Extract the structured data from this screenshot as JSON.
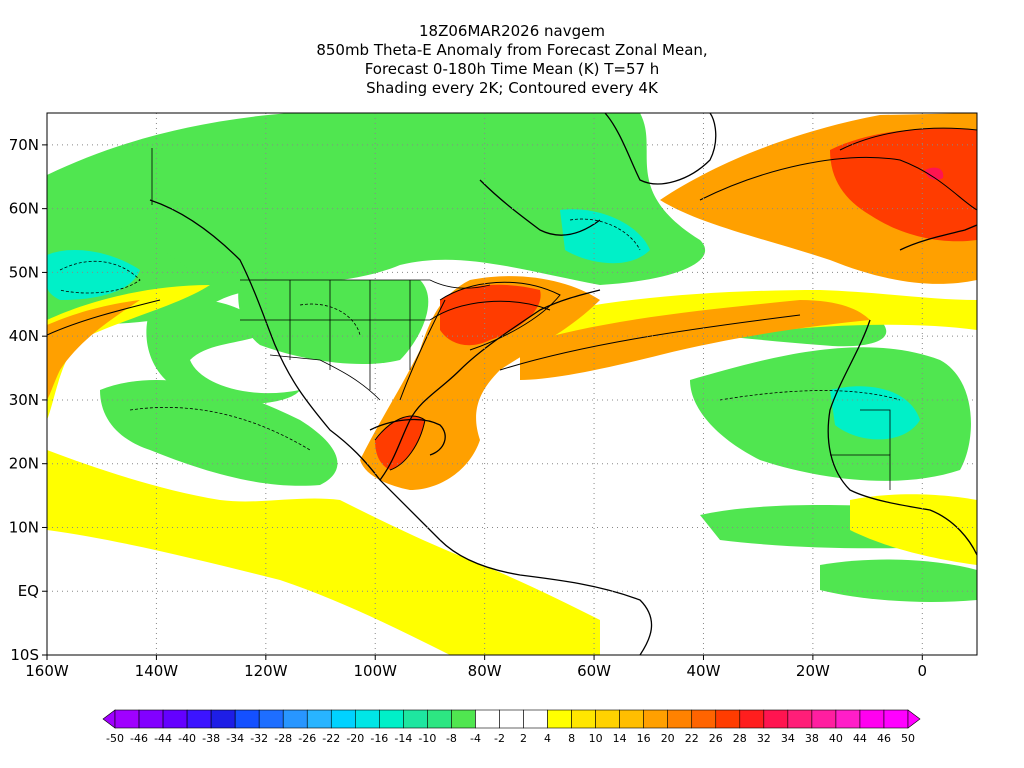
{
  "title": {
    "line1": "18Z06MAR2026 navgem",
    "line2": "850mb Theta-E Anomaly from Forecast Zonal Mean,",
    "line3": "Forecast 0-180h Time Mean (K) T=57 h",
    "line4": "Shading every 2K; Contoured every 4K"
  },
  "map": {
    "lon_range": [
      -160,
      10
    ],
    "lat_range": [
      -10,
      75
    ],
    "x_ticks": [
      "160W",
      "140W",
      "120W",
      "100W",
      "80W",
      "60W",
      "40W",
      "20W",
      "0"
    ],
    "x_tick_values": [
      -160,
      -140,
      -120,
      -100,
      -80,
      -60,
      -40,
      -20,
      0
    ],
    "y_ticks": [
      "10S",
      "EQ",
      "10N",
      "20N",
      "30N",
      "40N",
      "50N",
      "60N",
      "70N"
    ],
    "y_tick_values": [
      -10,
      0,
      10,
      20,
      30,
      40,
      50,
      60,
      70
    ],
    "grid": "dotted"
  },
  "colorbar": {
    "labels": [
      "-50",
      "-46",
      "-44",
      "-40",
      "-38",
      "-34",
      "-32",
      "-28",
      "-26",
      "-22",
      "-20",
      "-16",
      "-14",
      "-10",
      "-8",
      "-4",
      "-2",
      "2",
      "4",
      "8",
      "10",
      "14",
      "16",
      "20",
      "22",
      "26",
      "28",
      "32",
      "34",
      "38",
      "40",
      "44",
      "46",
      "50"
    ],
    "colors": [
      "#a000ff",
      "#8200ff",
      "#6400ff",
      "#3c14ff",
      "#1e1ee6",
      "#1450ff",
      "#1e6eff",
      "#2896ff",
      "#28b4ff",
      "#00d2ff",
      "#00e6e6",
      "#00f0c8",
      "#1ee6a0",
      "#2de682",
      "#50e650",
      "#ffffff",
      "#ffffff",
      "#ffffff",
      "#ffff00",
      "#ffe600",
      "#ffd200",
      "#ffbe00",
      "#ffa000",
      "#ff8200",
      "#ff6400",
      "#ff3c00",
      "#ff1e1e",
      "#ff1450",
      "#ff1e78",
      "#ff1ea0",
      "#ff1ec8",
      "#ff00f0",
      "#ff00ff"
    ],
    "end_colors": {
      "low": "#a000ff",
      "high": "#ff00ff"
    }
  },
  "field_regions": [
    {
      "label": "green",
      "color": "#50e650"
    },
    {
      "label": "teal",
      "color": "#00f0c8"
    },
    {
      "label": "yellow",
      "color": "#ffff00"
    },
    {
      "label": "orange",
      "color": "#ffa000"
    },
    {
      "label": "red",
      "color": "#ff3c00"
    }
  ]
}
